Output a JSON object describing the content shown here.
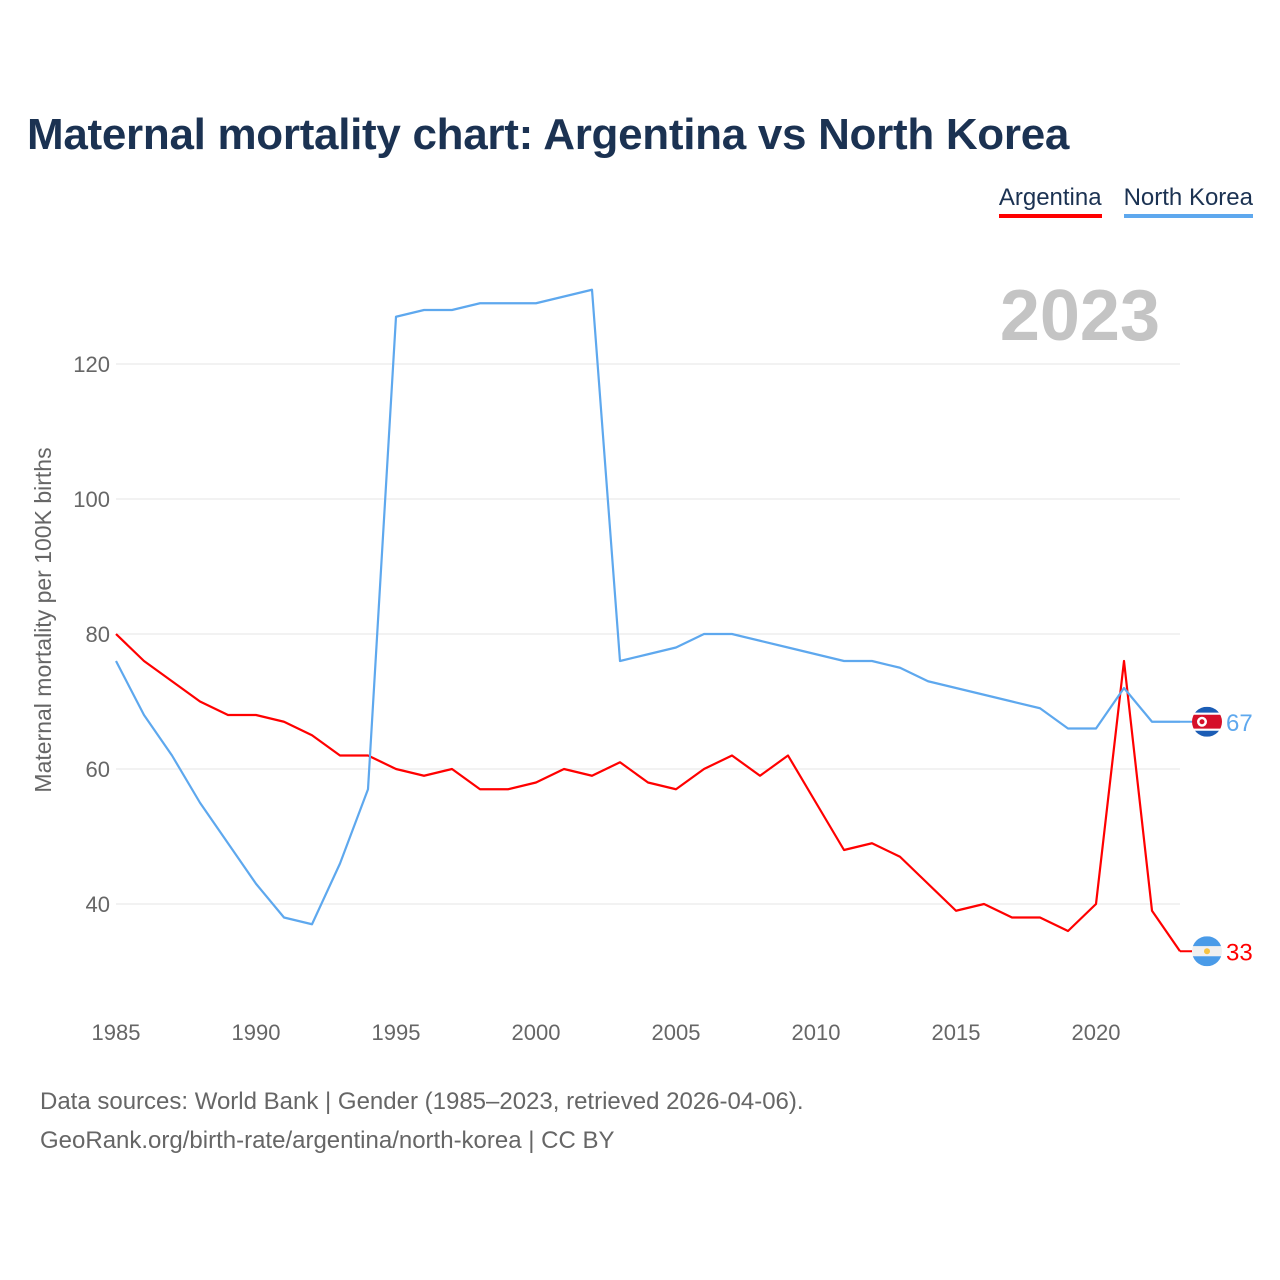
{
  "chart_data": {
    "type": "line",
    "title": "Maternal mortality chart: Argentina vs North Korea",
    "ylabel": "Maternal mortality per 100K births",
    "xlabel": "",
    "year_label": "2023",
    "xlim": [
      1985,
      2023
    ],
    "ylim": [
      28,
      140
    ],
    "x_ticks": [
      1985,
      1990,
      1995,
      2000,
      2005,
      2010,
      2015,
      2020
    ],
    "y_ticks": [
      40,
      60,
      80,
      100,
      120
    ],
    "grid": true,
    "legend_position": "top-right",
    "x": [
      1985,
      1986,
      1987,
      1988,
      1989,
      1990,
      1991,
      1992,
      1993,
      1994,
      1995,
      1996,
      1997,
      1998,
      1999,
      2000,
      2001,
      2002,
      2003,
      2004,
      2005,
      2006,
      2007,
      2008,
      2009,
      2010,
      2011,
      2012,
      2013,
      2014,
      2015,
      2016,
      2017,
      2018,
      2019,
      2020,
      2021,
      2022,
      2023
    ],
    "series": [
      {
        "name": "Argentina",
        "color": "#ff0000",
        "end_label": "33",
        "values": [
          80,
          76,
          73,
          70,
          68,
          68,
          67,
          65,
          62,
          62,
          60,
          59,
          60,
          57,
          57,
          58,
          60,
          59,
          61,
          58,
          57,
          60,
          62,
          59,
          62,
          55,
          48,
          49,
          47,
          43,
          39,
          40,
          38,
          38,
          36,
          40,
          76,
          39,
          33
        ]
      },
      {
        "name": "North Korea",
        "color": "#5ea8ee",
        "end_label": "67",
        "values": [
          76,
          68,
          62,
          55,
          49,
          43,
          38,
          37,
          46,
          57,
          127,
          128,
          128,
          129,
          129,
          129,
          130,
          131,
          76,
          77,
          78,
          80,
          80,
          79,
          78,
          77,
          76,
          76,
          75,
          73,
          72,
          71,
          70,
          69,
          66,
          66,
          72,
          67,
          67
        ]
      }
    ]
  },
  "footer": {
    "line1": "Data sources: World Bank | Gender (1985–2023, retrieved 2026-04-06).",
    "line2": "GeoRank.org/birth-rate/argentina/north-korea | CC BY"
  }
}
